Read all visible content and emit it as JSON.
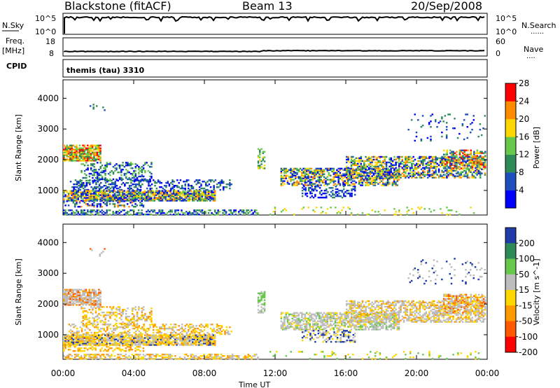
{
  "header": {
    "station": "Blackstone (fitACF)",
    "beam": "Beam 13",
    "date": "20/Sep/2008"
  },
  "params": {
    "nsky_label": "N.Sky",
    "nsearch_label": "N.Search",
    "nsearch_dots": "......",
    "freq_label": "Freq.",
    "freq_unit": "[MHz]",
    "nave_label": "Nave",
    "nave_dots": "....",
    "cpid_label": "CPID",
    "cpid_value": "themis (tau) 3310",
    "nsky_ticks": [
      "10^5",
      "10^0"
    ],
    "nsearch_ticks": [
      "10^5",
      "10^0"
    ],
    "freq_ticks": [
      "18",
      "8"
    ],
    "nave_ticks": [
      "60",
      "0"
    ]
  },
  "chart_data": [
    {
      "type": "heatmap",
      "name_label": "Power",
      "ylabel": "Slant Range [km]",
      "colorbar_label": "Power [dB]",
      "xlim": [
        "00:00",
        "00:00"
      ],
      "ylim": [
        200,
        4600
      ],
      "yticks": [
        1000,
        2000,
        3000,
        4000
      ],
      "colorbar_ticks": [
        "4",
        "8",
        "12",
        "16",
        "20",
        "24",
        "28"
      ],
      "colors": [
        "#0000ff",
        "#1f4fbf",
        "#2e8b57",
        "#66c94c",
        "#ffd700",
        "#ff8c00",
        "#ff0000"
      ]
    },
    {
      "type": "heatmap",
      "name_label": "Velocity",
      "ylabel": "Slant Range [km]",
      "colorbar_label": "Velocity [m s^-1]",
      "xlim": [
        "00:00",
        "00:00"
      ],
      "ylim": [
        200,
        4600
      ],
      "yticks": [
        1000,
        2000,
        3000,
        4000
      ],
      "colorbar_ticks": [
        "200",
        "100",
        "50",
        "15",
        "-15",
        "-50",
        "-100",
        "-200"
      ],
      "colors": [
        "#1f3ca8",
        "#2e8b57",
        "#66c94c",
        "#bdbdbd",
        "#ffd700",
        "#ff9900",
        "#ff5a00",
        "#ff0000"
      ]
    }
  ],
  "xaxis": {
    "label": "Time UT",
    "ticks": [
      "00:00",
      "04:00",
      "08:00",
      "12:00",
      "16:00",
      "20:00",
      "00:00"
    ]
  },
  "scatter_regions": [
    {
      "t0": 0.0,
      "t1": 2.1,
      "r0": 1950,
      "r1": 2450,
      "p": 0.8,
      "pal": [
        3,
        4,
        5,
        6,
        2
      ],
      "vpal": [
        3,
        3,
        3,
        6,
        5
      ]
    },
    {
      "t0": 1.5,
      "t1": 2.4,
      "r0": 3550,
      "r1": 3800,
      "p": 0.15,
      "pal": [
        1,
        2
      ],
      "vpal": [
        3,
        6
      ]
    },
    {
      "t0": 1.0,
      "t1": 5.0,
      "r0": 1300,
      "r1": 1900,
      "p": 0.35,
      "pal": [
        0,
        1,
        2,
        3
      ],
      "vpal": [
        4,
        5,
        3
      ]
    },
    {
      "t0": 0.3,
      "t1": 9.5,
      "r0": 1000,
      "r1": 1350,
      "p": 0.35,
      "pal": [
        0,
        1,
        2
      ],
      "vpal": [
        4,
        5,
        3
      ]
    },
    {
      "t0": 0.0,
      "t1": 8.6,
      "r0": 650,
      "r1": 1000,
      "p": 0.85,
      "pal": [
        1,
        2,
        3,
        4,
        5,
        0
      ],
      "vpal": [
        3,
        4,
        4,
        5,
        3,
        0
      ]
    },
    {
      "t0": 0.0,
      "t1": 4.5,
      "r0": 450,
      "r1": 650,
      "p": 0.3,
      "pal": [
        0,
        1,
        2,
        5
      ],
      "vpal": [
        4,
        5
      ]
    },
    {
      "t0": 0.0,
      "t1": 11.0,
      "r0": 200,
      "r1": 380,
      "p": 0.5,
      "pal": [
        0,
        1,
        2,
        3
      ],
      "vpal": [
        4,
        5,
        3
      ]
    },
    {
      "t0": 11.0,
      "t1": 11.4,
      "r0": 1700,
      "r1": 2400,
      "p": 0.4,
      "pal": [
        2,
        3,
        4
      ],
      "vpal": [
        2,
        3
      ]
    },
    {
      "t0": 12.3,
      "t1": 19.0,
      "r0": 1150,
      "r1": 1700,
      "p": 0.6,
      "pal": [
        0,
        1,
        2,
        3,
        4,
        5
      ],
      "vpal": [
        3,
        3,
        3,
        4,
        2
      ]
    },
    {
      "t0": 13.5,
      "t1": 16.5,
      "r0": 750,
      "r1": 1150,
      "p": 0.35,
      "pal": [
        0,
        1,
        2
      ],
      "vpal": [
        3,
        4,
        0
      ]
    },
    {
      "t0": 16.0,
      "t1": 23.9,
      "r0": 1400,
      "r1": 2100,
      "p": 0.55,
      "pal": [
        0,
        1,
        2,
        3,
        4,
        5
      ],
      "vpal": [
        3,
        3,
        3,
        4,
        5
      ]
    },
    {
      "t0": 21.5,
      "t1": 23.9,
      "r0": 1700,
      "r1": 2300,
      "p": 0.55,
      "pal": [
        1,
        2,
        3,
        4,
        5,
        6
      ],
      "vpal": [
        3,
        3,
        4,
        5,
        6
      ]
    },
    {
      "t0": 19.5,
      "t1": 23.9,
      "r0": 2600,
      "r1": 3500,
      "p": 0.06,
      "pal": [
        0,
        1,
        2
      ],
      "vpal": [
        3,
        0
      ]
    },
    {
      "t0": 11.5,
      "t1": 23.9,
      "r0": 200,
      "r1": 450,
      "p": 0.08,
      "pal": [
        3,
        4
      ],
      "vpal": [
        2,
        4
      ]
    }
  ]
}
